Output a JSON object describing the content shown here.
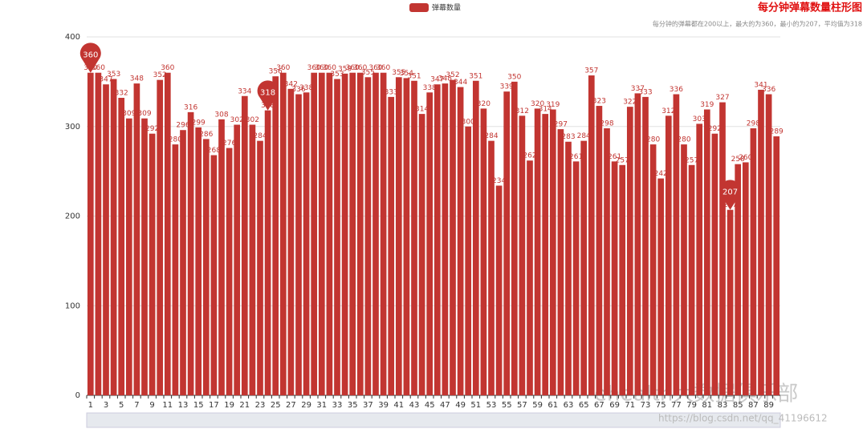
{
  "chart_data": {
    "type": "bar",
    "title": "每分钟弹幕数量柱形图",
    "subtitle": "每分钟的弹幕都在200以上，最大的为360，最小的为207，平均值为318",
    "legend": "top",
    "categories": [
      "1",
      null,
      "3",
      null,
      "5",
      null,
      "7",
      null,
      "9",
      null,
      "11",
      null,
      "13",
      null,
      "15",
      null,
      "17",
      null,
      "19",
      null,
      "21",
      null,
      "23",
      null,
      "25",
      null,
      "27",
      null,
      "29",
      null,
      "31",
      null,
      "33",
      null,
      "35",
      null,
      "37",
      null,
      "39",
      null,
      "41",
      null,
      "43",
      null,
      "45",
      null,
      "47",
      null,
      "49",
      null,
      "51",
      null,
      "53",
      null,
      "55",
      null,
      "57",
      null,
      "59",
      null,
      "61",
      null,
      "63",
      null,
      "65",
      null,
      "67",
      null,
      "69",
      null,
      "71",
      null,
      "73",
      null,
      "75",
      null,
      "77",
      null,
      "79",
      null,
      "81",
      null,
      "83",
      null,
      "85",
      null,
      "87",
      null,
      "89",
      null
    ],
    "series": [
      {
        "name": "弹幕数量",
        "color": "#c23531",
        "values": [
          360,
          360,
          347,
          353,
          332,
          309,
          348,
          309,
          292,
          352,
          360,
          280,
          296,
          316,
          299,
          286,
          268,
          308,
          276,
          302,
          334,
          302,
          284,
          318,
          356,
          360,
          342,
          336,
          338,
          360,
          360,
          360,
          353,
          359,
          360,
          360,
          355,
          360,
          360,
          333,
          355,
          354,
          351,
          314,
          338,
          347,
          348,
          352,
          344,
          300,
          351,
          320,
          284,
          234,
          339,
          350,
          312,
          262,
          320,
          314,
          319,
          297,
          283,
          261,
          284,
          357,
          323,
          298,
          261,
          257,
          322,
          337,
          333,
          280,
          242,
          312,
          336,
          280,
          257,
          303,
          319,
          292,
          327,
          207,
          258,
          260,
          298,
          341,
          336,
          289
        ]
      }
    ],
    "mark_points": [
      {
        "index": 0,
        "value": 360
      },
      {
        "index": 23,
        "value": 318
      },
      {
        "index": 83,
        "value": 207
      }
    ],
    "ylim": [
      0,
      400
    ],
    "yticks": [
      0,
      100,
      200,
      300,
      400
    ],
    "grid": true,
    "watermark": "ehealth大数据俱乐部",
    "source_url": "https://blog.csdn.net/qq_41196612"
  }
}
